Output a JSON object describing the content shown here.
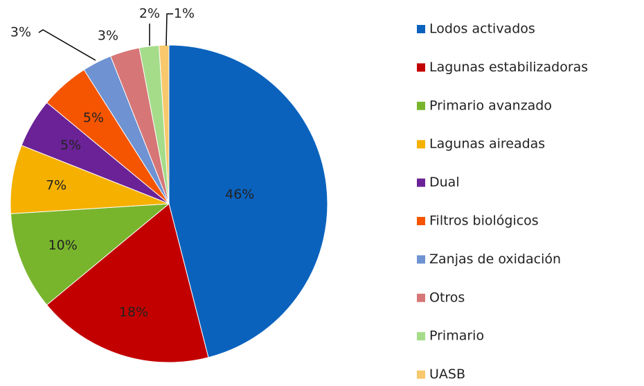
{
  "chart_data": {
    "type": "pie",
    "categories": [
      "Lodos activados",
      "Lagunas estabilizadoras",
      "Primario avanzado",
      "Lagunas aireadas",
      "Dual",
      "Filtros biológicos",
      "Zanjas de oxidación",
      "Otros",
      "Primario",
      "UASB"
    ],
    "values": [
      46,
      18,
      10,
      7,
      5,
      5,
      3,
      3,
      2,
      1
    ],
    "value_labels": [
      "46%",
      "18%",
      "10%",
      "7%",
      "5%",
      "5%",
      "3%",
      "3%",
      "2%",
      "1%"
    ],
    "colors": [
      "#0a62bd",
      "#c20000",
      "#78b52d",
      "#f5b000",
      "#6b2296",
      "#f55500",
      "#6e92d2",
      "#d67676",
      "#a5dc8a",
      "#f8c86c"
    ],
    "legend": "right"
  }
}
